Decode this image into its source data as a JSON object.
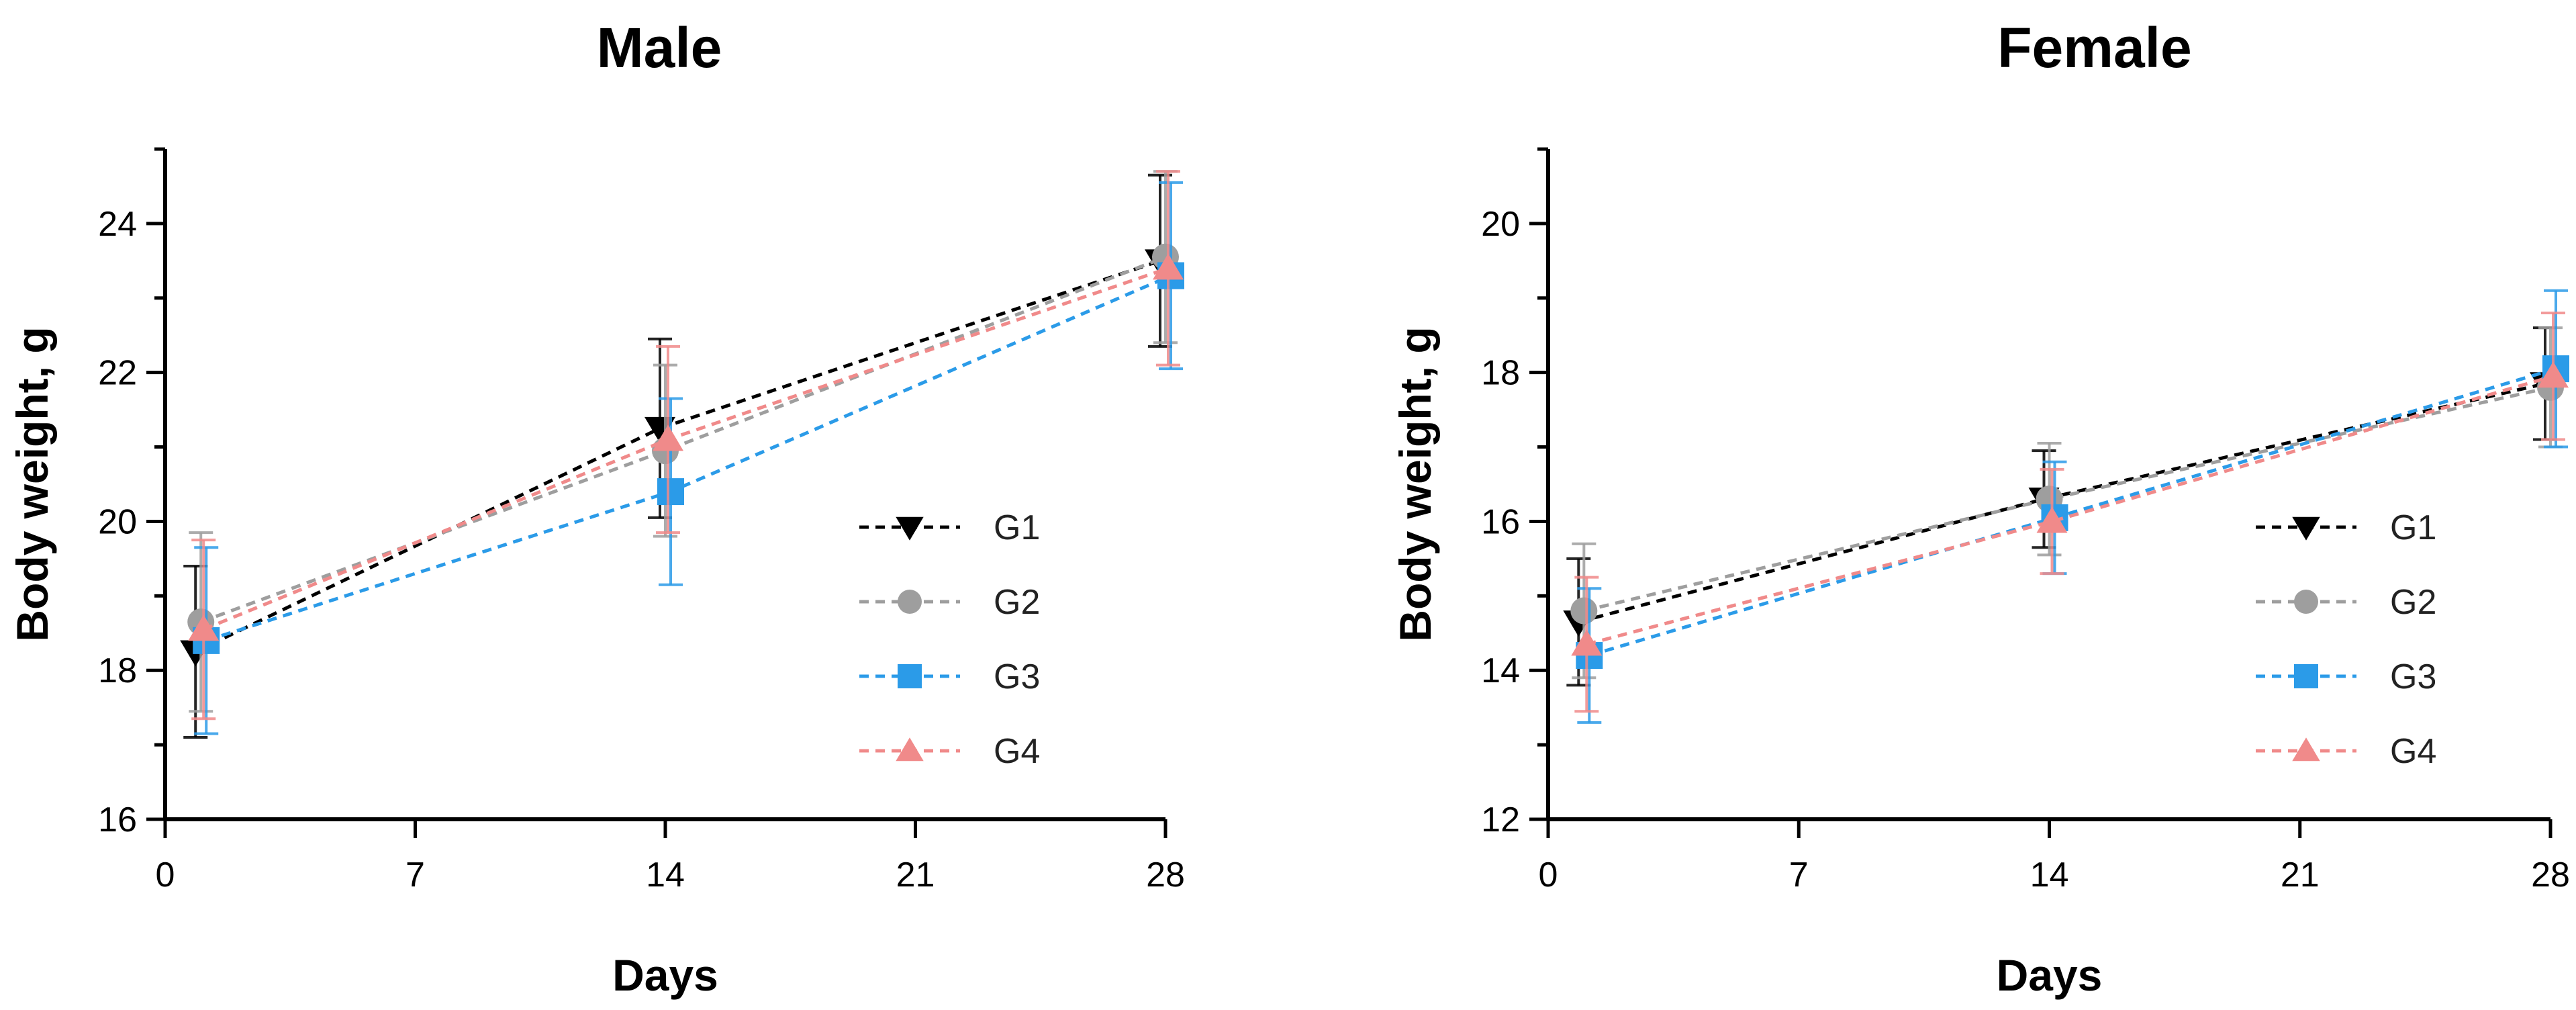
{
  "chart_data": [
    {
      "type": "line",
      "title": "Male",
      "xlabel": "Days",
      "ylabel": "Body weight, g",
      "xlim": [
        0,
        28
      ],
      "ylim": [
        16,
        25
      ],
      "xticks": [
        0,
        7,
        14,
        21,
        28
      ],
      "yticks": [
        16,
        18,
        20,
        22,
        24
      ],
      "x": [
        1,
        14,
        28
      ],
      "legend": "right",
      "series": [
        {
          "name": "G1",
          "marker": "triangle-down",
          "color": "#000000",
          "values": [
            18.25,
            21.25,
            23.5
          ],
          "err_low": [
            17.1,
            20.05,
            22.35
          ],
          "err_high": [
            19.4,
            22.45,
            24.65
          ]
        },
        {
          "name": "G2",
          "marker": "circle",
          "color": "#9e9e9e",
          "values": [
            18.65,
            20.95,
            23.55
          ],
          "err_low": [
            17.45,
            19.8,
            22.4
          ],
          "err_high": [
            19.85,
            22.1,
            24.7
          ]
        },
        {
          "name": "G3",
          "marker": "square",
          "color": "#2b9be8",
          "values": [
            18.4,
            20.4,
            23.3
          ],
          "err_low": [
            17.15,
            19.15,
            22.05
          ],
          "err_high": [
            19.65,
            21.65,
            24.55
          ]
        },
        {
          "name": "G4",
          "marker": "triangle-up",
          "color": "#f08a8a",
          "values": [
            18.55,
            21.1,
            23.4
          ],
          "err_low": [
            17.35,
            19.85,
            22.1
          ],
          "err_high": [
            19.75,
            22.35,
            24.7
          ]
        }
      ]
    },
    {
      "type": "line",
      "title": "Female",
      "xlabel": "Days",
      "ylabel": "Body weight, g",
      "xlim": [
        0,
        28
      ],
      "ylim": [
        12,
        21
      ],
      "xticks": [
        0,
        7,
        14,
        21,
        28
      ],
      "yticks": [
        12,
        14,
        16,
        18,
        20
      ],
      "x": [
        1,
        14,
        28
      ],
      "legend": "right",
      "series": [
        {
          "name": "G1",
          "marker": "triangle-down",
          "color": "#000000",
          "values": [
            14.65,
            16.3,
            17.85
          ],
          "err_low": [
            13.8,
            15.65,
            17.1
          ],
          "err_high": [
            15.5,
            16.95,
            18.6
          ]
        },
        {
          "name": "G2",
          "marker": "circle",
          "color": "#9e9e9e",
          "values": [
            14.8,
            16.3,
            17.8
          ],
          "err_low": [
            13.9,
            15.55,
            17.0
          ],
          "err_high": [
            15.7,
            17.05,
            18.6
          ]
        },
        {
          "name": "G3",
          "marker": "square",
          "color": "#2b9be8",
          "values": [
            14.2,
            16.05,
            18.05
          ],
          "err_low": [
            13.3,
            15.3,
            17.0
          ],
          "err_high": [
            15.1,
            16.8,
            19.1
          ]
        },
        {
          "name": "G4",
          "marker": "triangle-up",
          "color": "#f08a8a",
          "values": [
            14.35,
            16.0,
            17.95
          ],
          "err_low": [
            13.45,
            15.3,
            17.1
          ],
          "err_high": [
            15.25,
            16.7,
            18.8
          ]
        }
      ]
    }
  ]
}
